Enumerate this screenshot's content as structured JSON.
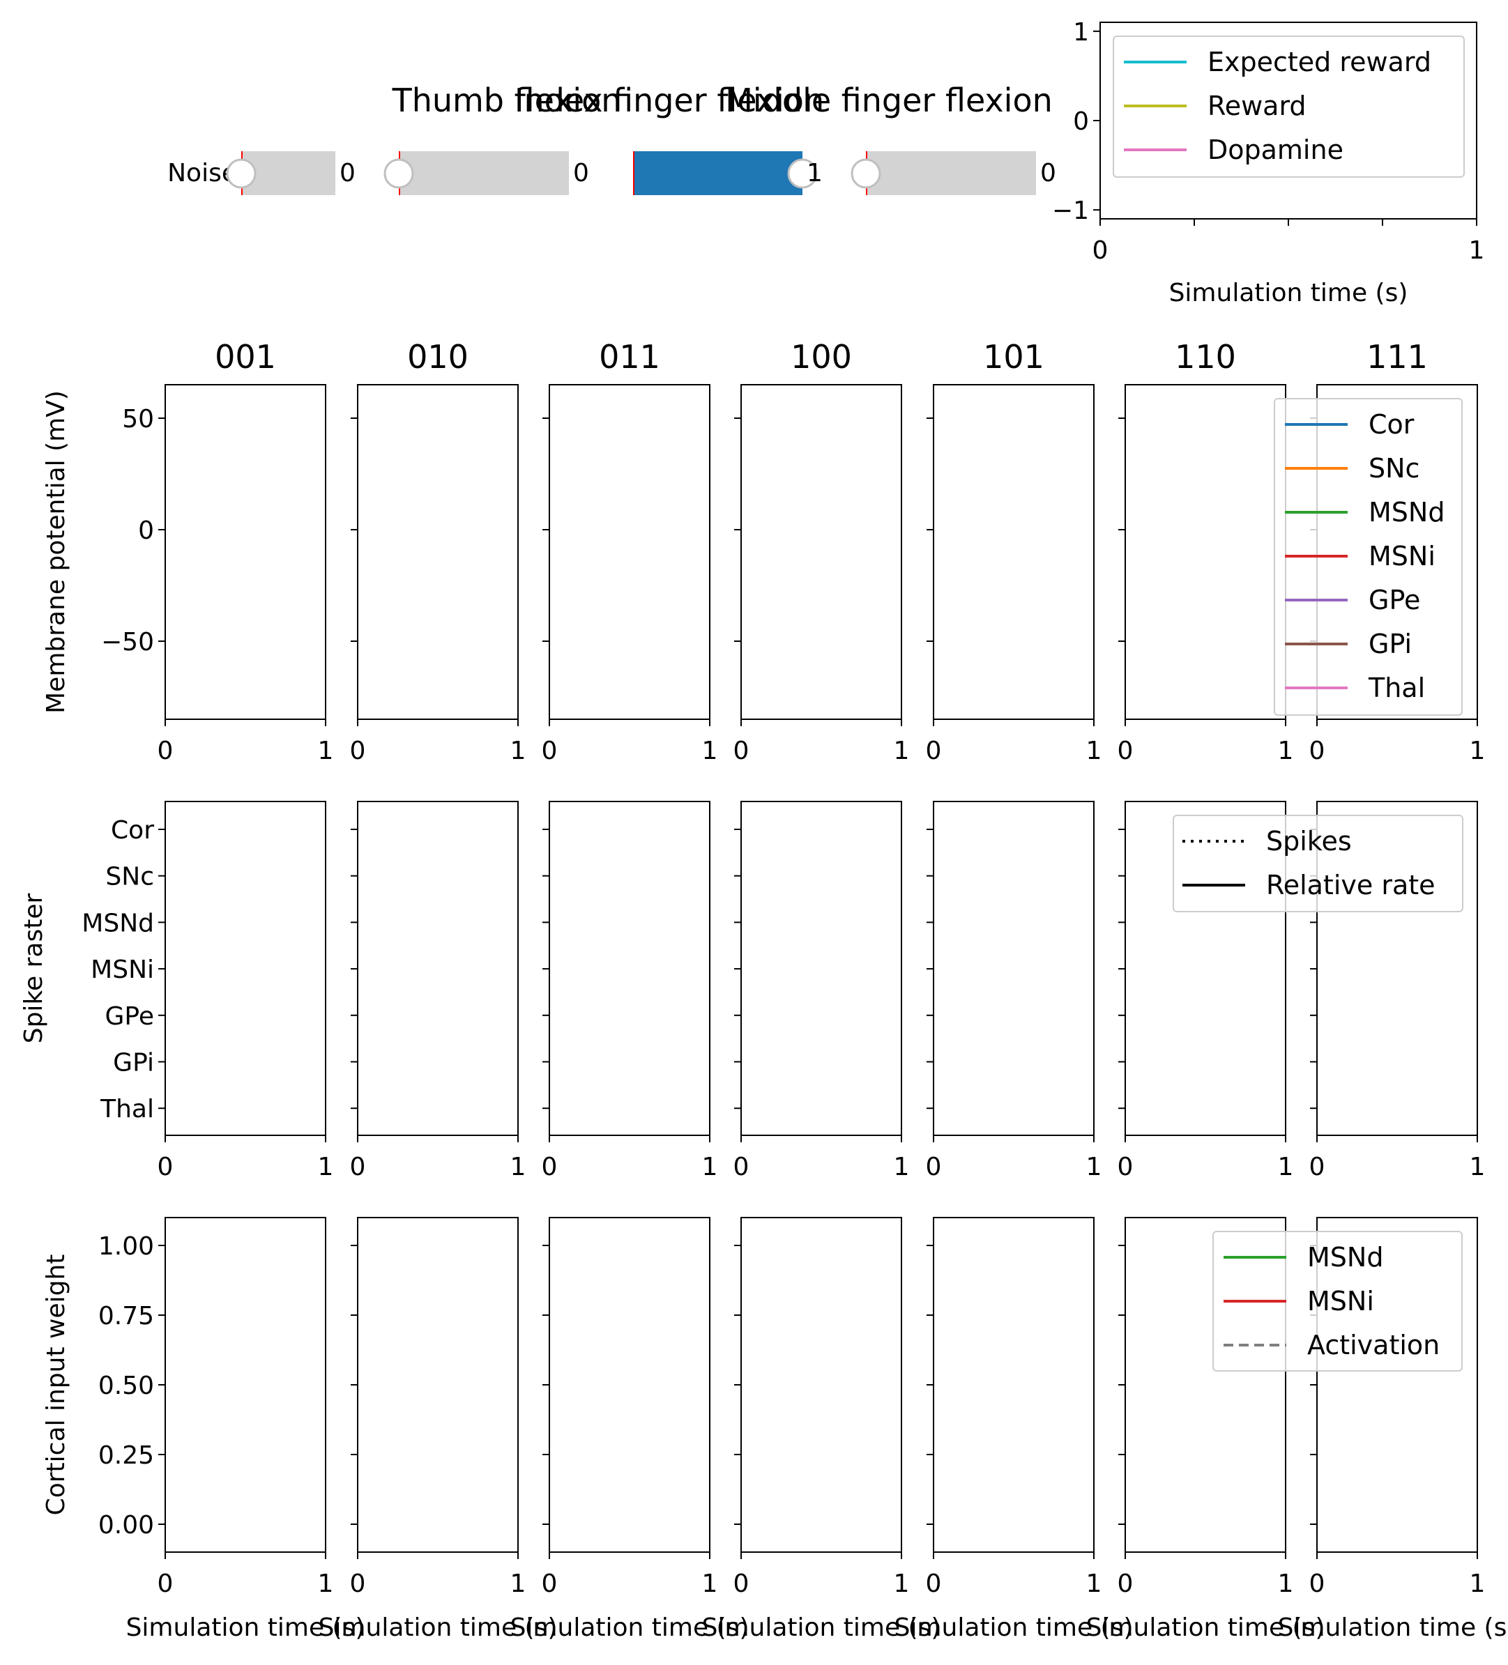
{
  "colors": {
    "slider_track": "#d3d3d3",
    "slider_fill": "#1f77b4",
    "slider_valinit": "#ff0000",
    "knob_face": "#ffffff",
    "knob_edge": "#bfbfbf",
    "frame": "#000000",
    "legend_edge": "#cccccc"
  },
  "controls": {
    "sliders": [
      {
        "id": "noise",
        "label": "Noise",
        "title": "",
        "value": 0,
        "value_text": "0",
        "icon": "slider-knob"
      },
      {
        "id": "thumb",
        "label": "",
        "title": "Thumb flexion",
        "value": 0,
        "value_text": "0",
        "icon": "slider-knob"
      },
      {
        "id": "index",
        "label": "",
        "title": "Index finger flexion",
        "value": 1,
        "value_text": "1",
        "icon": "slider-knob"
      },
      {
        "id": "middle",
        "label": "",
        "title": "Middle finger flexion",
        "value": 0,
        "value_text": "0",
        "icon": "slider-knob"
      }
    ]
  },
  "chart_data": [
    {
      "id": "reward",
      "type": "line",
      "xlabel": "Simulation time (s)",
      "ylabel": "",
      "xlim": [
        0,
        1
      ],
      "ylim": [
        -1.1,
        1.1
      ],
      "x_ticks": [
        "0",
        "1"
      ],
      "y_ticks": [
        "1",
        "0",
        "−1"
      ],
      "legend_position": "upper right",
      "series": [
        {
          "name": "Expected reward",
          "color": "#17becf",
          "style": "solid",
          "values": []
        },
        {
          "name": "Reward",
          "color": "#bcbd22",
          "style": "solid",
          "values": []
        },
        {
          "name": "Dopamine",
          "color": "#e377c2",
          "style": "solid",
          "values": []
        }
      ]
    },
    {
      "id": "membrane",
      "type": "line",
      "columns": [
        "001",
        "010",
        "011",
        "100",
        "101",
        "110",
        "111"
      ],
      "ylabel": "Membrane potential (mV)",
      "xlim": [
        0,
        1
      ],
      "ylim": [
        -85,
        65
      ],
      "x_ticks": [
        "0",
        "1"
      ],
      "y_ticks": [
        "50",
        "0",
        "−50"
      ],
      "legend_position": "upper right",
      "series": [
        {
          "name": "Cor",
          "color": "#1f77b4",
          "style": "solid",
          "values": []
        },
        {
          "name": "SNc",
          "color": "#ff7f0e",
          "style": "solid",
          "values": []
        },
        {
          "name": "MSNd",
          "color": "#2ca02c",
          "style": "solid",
          "values": []
        },
        {
          "name": "MSNi",
          "color": "#d62728",
          "style": "solid",
          "values": []
        },
        {
          "name": "GPe",
          "color": "#9467bd",
          "style": "solid",
          "values": []
        },
        {
          "name": "GPi",
          "color": "#8c564b",
          "style": "solid",
          "values": []
        },
        {
          "name": "Thal",
          "color": "#e377c2",
          "style": "solid",
          "values": []
        }
      ]
    },
    {
      "id": "raster",
      "type": "scatter",
      "ylabel": "Spike raster",
      "xlim": [
        0,
        1
      ],
      "x_ticks": [
        "0",
        "1"
      ],
      "y_categories": [
        "Cor",
        "SNc",
        "MSNd",
        "MSNi",
        "GPe",
        "GPi",
        "Thal"
      ],
      "legend_position": "upper right",
      "series": [
        {
          "name": "Spikes",
          "color": "#000000",
          "style": "dotted",
          "values": []
        },
        {
          "name": "Relative rate",
          "color": "#000000",
          "style": "solid",
          "values": []
        }
      ]
    },
    {
      "id": "weights",
      "type": "line",
      "ylabel": "Cortical input weight",
      "xlabel": "Simulation time (s)",
      "xlim": [
        0,
        1
      ],
      "ylim": [
        -0.1,
        1.1
      ],
      "x_ticks": [
        "0",
        "1"
      ],
      "y_ticks": [
        "1.00",
        "0.75",
        "0.50",
        "0.25",
        "0.00"
      ],
      "legend_position": "upper right",
      "series": [
        {
          "name": "MSNd",
          "color": "#2ca02c",
          "style": "solid",
          "values": []
        },
        {
          "name": "MSNi",
          "color": "#d62728",
          "style": "solid",
          "values": []
        },
        {
          "name": "Activation",
          "color": "#808080",
          "style": "dashed",
          "values": []
        }
      ]
    }
  ]
}
